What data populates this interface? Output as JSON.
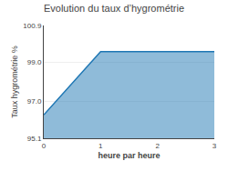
{
  "chart_data": {
    "type": "area",
    "title": "Evolution du taux d’hygrométrie",
    "xlabel": "heure par heure",
    "ylabel": "Taux hygrométrie %",
    "x": [
      0,
      1,
      3
    ],
    "values": [
      96.3,
      99.55,
      99.55
    ],
    "xlim": [
      0,
      3
    ],
    "ylim": [
      95.1,
      100.9
    ],
    "xticks": [
      0,
      1,
      2,
      3
    ],
    "yticks": [
      95.1,
      {
        "value": 97.0,
        "label": "97.0"
      },
      {
        "value": 99.0,
        "label": "99.0"
      },
      100.9
    ],
    "grid": "y"
  }
}
